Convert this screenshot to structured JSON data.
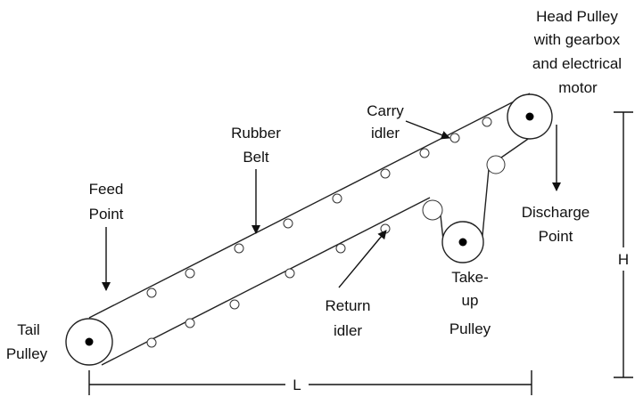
{
  "labels": {
    "head_pulley": [
      "Head Pulley",
      "with gearbox",
      "and electrical",
      "motor"
    ],
    "carry_idler": [
      "Carry",
      "idler"
    ],
    "rubber_belt": [
      "Rubber",
      "Belt"
    ],
    "feed_point": [
      "Feed",
      "Point"
    ],
    "discharge_point": [
      "Discharge",
      "Point"
    ],
    "take_up_pulley": [
      "Take-",
      "up",
      "Pulley"
    ],
    "return_idler": [
      "Return",
      "idler"
    ],
    "tail_pulley": [
      "Tail",
      "Pulley"
    ],
    "length": "L",
    "height": "H"
  }
}
